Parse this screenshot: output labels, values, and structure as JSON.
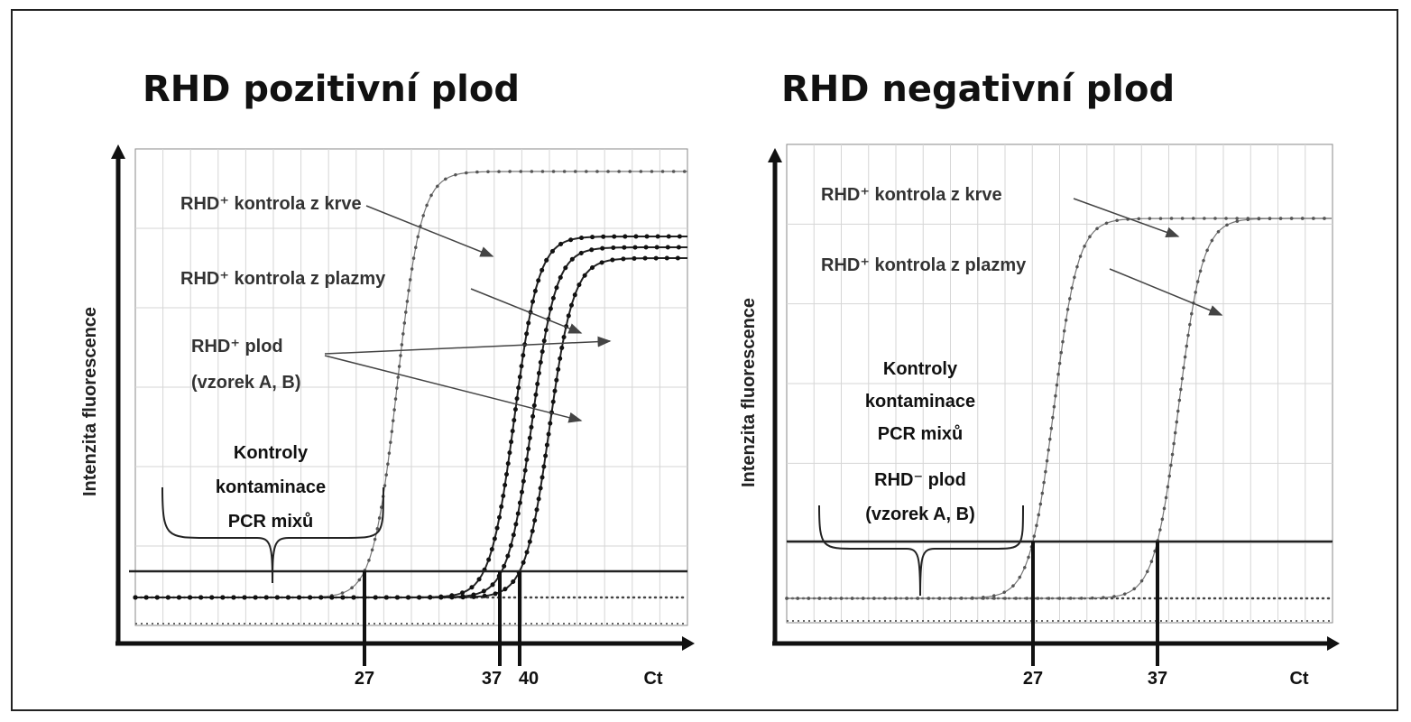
{
  "chart_data": [
    {
      "type": "line",
      "title": "RHD pozitivní plod",
      "ylabel": "Intenzita fluorescence",
      "x_axis_label": "Ct",
      "x_ticks_marked": [
        27,
        37,
        40
      ],
      "xlim": [
        0,
        50
      ],
      "grid": true,
      "threshold": 0.16,
      "annotations": [
        "RHD⁺ kontrola  z krve",
        "RHD⁺ kontrola   z plazmy",
        "RHD⁺ plod",
        "(vzorek  A, B)",
        "Kontroly",
        "kontaminace",
        "PCR mixů"
      ],
      "series_ct": [
        27,
        37,
        38.5,
        40
      ]
    },
    {
      "type": "line",
      "title": "RHD negativní plod",
      "ylabel": "Intenzita fluorescence",
      "x_axis_label": "Ct",
      "x_ticks_marked": [
        27,
        37
      ],
      "xlim": [
        0,
        50
      ],
      "grid": true,
      "threshold": 0.14,
      "annotations": [
        "RHD⁺ kontrola  z krve",
        "RHD⁺ kontrola   z plazmy",
        "Kontroly",
        "kontaminace",
        "PCR mixů",
        "RHD⁻ plod",
        "(vzorek  A, B)"
      ],
      "series_ct": [
        27,
        37
      ]
    }
  ]
}
